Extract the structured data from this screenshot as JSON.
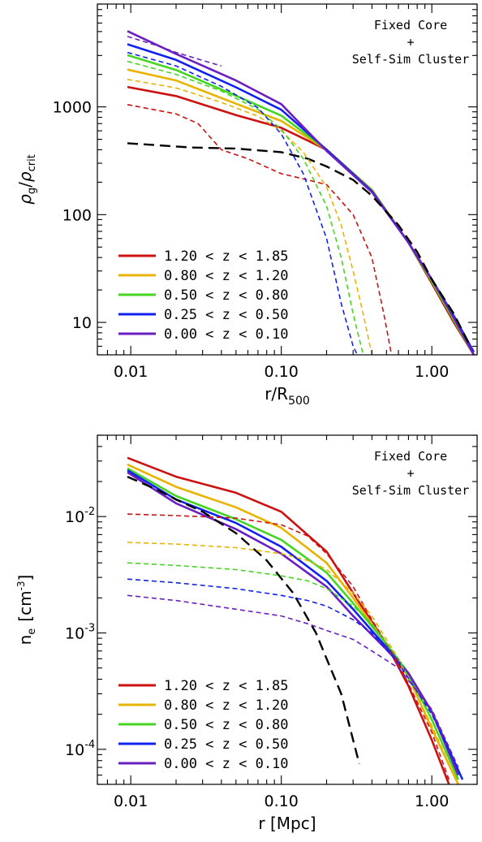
{
  "chart_data": [
    {
      "type": "line",
      "xscale": "log",
      "yscale": "log",
      "xlim": [
        0.006,
        2.0
      ],
      "ylim": [
        5,
        9000
      ],
      "xlabel_main": "r/R",
      "xlabel_sub": "500",
      "ylabel_sym1": "ρ",
      "ylabel_sub1": "g",
      "ylabel_sep": "/",
      "ylabel_sym2": "ρ",
      "ylabel_sub2": "crit",
      "x_ticks": [
        {
          "v": 0.01,
          "label": "0.01"
        },
        {
          "v": 0.1,
          "label": "0.10"
        },
        {
          "v": 1.0,
          "label": "1.00"
        }
      ],
      "y_ticks": [
        {
          "v": 10,
          "label": "10"
        },
        {
          "v": 100,
          "label": "100"
        },
        {
          "v": 1000,
          "label": "1000"
        }
      ],
      "annotation": [
        "Fixed Core",
        "+",
        "Self-Sim Cluster"
      ],
      "legend": [
        {
          "label": "1.20 < z < 1.85",
          "color": "#cc1111"
        },
        {
          "label": "0.80 < z < 1.20",
          "color": "#e8b400"
        },
        {
          "label": "0.50 < z < 0.80",
          "color": "#44d622"
        },
        {
          "label": "0.25 < z < 0.50",
          "color": "#1122ee"
        },
        {
          "label": "0.00 < z < 0.10",
          "color": "#6a1fc0"
        }
      ],
      "series": [
        {
          "color": "#cc1111",
          "style": "solid",
          "x": [
            0.0095,
            0.02,
            0.05,
            0.1,
            0.2,
            0.4,
            0.7,
            1.0,
            1.4,
            1.9
          ],
          "y": [
            1530,
            1260,
            840,
            640,
            400,
            170,
            55,
            23,
            10,
            5
          ]
        },
        {
          "color": "#e8b400",
          "style": "solid",
          "x": [
            0.0095,
            0.02,
            0.05,
            0.1,
            0.2,
            0.4,
            0.7,
            1.0,
            1.4,
            1.9
          ],
          "y": [
            2220,
            1760,
            1070,
            740,
            400,
            170,
            55,
            24,
            10.5,
            5
          ]
        },
        {
          "color": "#44d622",
          "style": "solid",
          "x": [
            0.0095,
            0.02,
            0.05,
            0.1,
            0.2,
            0.4,
            0.7,
            1.0,
            1.4,
            1.9
          ],
          "y": [
            3020,
            2200,
            1270,
            830,
            400,
            168,
            55,
            24,
            10.5,
            5
          ]
        },
        {
          "color": "#1122ee",
          "style": "solid",
          "x": [
            0.0095,
            0.02,
            0.05,
            0.1,
            0.2,
            0.4,
            0.7,
            1.0,
            1.4,
            1.9
          ],
          "y": [
            3810,
            2730,
            1520,
            940,
            400,
            165,
            55,
            25,
            11.5,
            5.3
          ]
        },
        {
          "color": "#6a1fc0",
          "style": "solid",
          "x": [
            0.0095,
            0.02,
            0.05,
            0.1,
            0.2,
            0.4,
            0.7,
            1.0,
            1.4,
            1.9
          ],
          "y": [
            5050,
            3100,
            1760,
            1060,
            390,
            162,
            55,
            25,
            11,
            5
          ]
        },
        {
          "color": "#000000",
          "style": "longdash",
          "x": [
            0.0095,
            0.025,
            0.05,
            0.1,
            0.15,
            0.2,
            0.3,
            0.4,
            0.6,
            0.8,
            1.0,
            1.4,
            1.8
          ],
          "y": [
            460,
            420,
            410,
            380,
            330,
            280,
            210,
            150,
            80,
            45,
            25,
            12,
            6
          ]
        },
        {
          "color": "#cc1111",
          "style": "dash",
          "x": [
            0.0095,
            0.02,
            0.028,
            0.04,
            0.06,
            0.1,
            0.15,
            0.2,
            0.3,
            0.4,
            0.48,
            0.54
          ],
          "y": [
            1050,
            860,
            700,
            400,
            330,
            240,
            210,
            190,
            100,
            40,
            12,
            5
          ]
        },
        {
          "color": "#e8b400",
          "style": "dash",
          "x": [
            0.0095,
            0.02,
            0.04,
            0.07,
            0.1,
            0.14,
            0.2,
            0.25,
            0.3,
            0.35,
            0.4
          ],
          "y": [
            1800,
            1500,
            1100,
            820,
            600,
            380,
            180,
            80,
            30,
            12,
            5
          ]
        },
        {
          "color": "#44d622",
          "style": "dash",
          "x": [
            0.0095,
            0.02,
            0.04,
            0.07,
            0.1,
            0.14,
            0.2,
            0.25,
            0.3,
            0.35
          ],
          "y": [
            2650,
            2000,
            1400,
            950,
            620,
            330,
            120,
            40,
            12,
            5
          ]
        },
        {
          "color": "#1122ee",
          "style": "dash",
          "x": [
            0.0095,
            0.02,
            0.04,
            0.07,
            0.1,
            0.14,
            0.2,
            0.25,
            0.3,
            0.32
          ],
          "y": [
            3200,
            2400,
            1550,
            980,
            560,
            240,
            60,
            15,
            6,
            5
          ]
        },
        {
          "color": "#6a1fc0",
          "style": "dash",
          "x": [
            0.0095,
            0.015,
            0.02,
            0.03,
            0.04
          ],
          "y": [
            4500,
            3700,
            3200,
            2700,
            2400
          ]
        }
      ]
    },
    {
      "type": "line",
      "xscale": "log",
      "yscale": "log",
      "xlim": [
        0.006,
        2.0
      ],
      "ylim": [
        5e-05,
        0.05
      ],
      "xlabel_main": "r [Mpc]",
      "ylabel_sym1": "n",
      "ylabel_sub1": "e",
      "ylabel_unit_pre": "[cm",
      "ylabel_unit_exp": "-3",
      "ylabel_unit_post": "]",
      "x_ticks": [
        {
          "v": 0.01,
          "label": "0.01"
        },
        {
          "v": 0.1,
          "label": "0.10"
        },
        {
          "v": 1.0,
          "label": "1.00"
        }
      ],
      "y_ticks": [
        {
          "v": 0.0001,
          "base": "10",
          "exp": "-4"
        },
        {
          "v": 0.001,
          "base": "10",
          "exp": "-3"
        },
        {
          "v": 0.01,
          "base": "10",
          "exp": "-2"
        }
      ],
      "annotation": [
        "Fixed Core",
        "+",
        "Self-Sim Cluster"
      ],
      "legend": [
        {
          "label": "1.20 < z < 1.85",
          "color": "#cc1111"
        },
        {
          "label": "0.80 < z < 1.20",
          "color": "#e8b400"
        },
        {
          "label": "0.50 < z < 0.80",
          "color": "#44d622"
        },
        {
          "label": "0.25 < z < 0.50",
          "color": "#1122ee"
        },
        {
          "label": "0.00 < z < 0.10",
          "color": "#6a1fc0"
        }
      ],
      "series": [
        {
          "color": "#cc1111",
          "style": "solid",
          "x": [
            0.0095,
            0.02,
            0.05,
            0.1,
            0.2,
            0.3,
            0.5,
            0.7,
            1.0,
            1.3
          ],
          "y": [
            0.032,
            0.022,
            0.016,
            0.011,
            0.005,
            0.0022,
            0.0008,
            0.00035,
            0.00012,
            5e-05
          ]
        },
        {
          "color": "#e8b400",
          "style": "solid",
          "x": [
            0.0095,
            0.02,
            0.05,
            0.1,
            0.2,
            0.3,
            0.5,
            0.7,
            1.0,
            1.5
          ],
          "y": [
            0.028,
            0.018,
            0.012,
            0.008,
            0.004,
            0.002,
            0.0008,
            0.00042,
            0.00015,
            5e-05
          ]
        },
        {
          "color": "#44d622",
          "style": "solid",
          "x": [
            0.0095,
            0.02,
            0.05,
            0.1,
            0.2,
            0.3,
            0.5,
            0.7,
            1.0,
            1.5
          ],
          "y": [
            0.026,
            0.015,
            0.0095,
            0.0063,
            0.0033,
            0.0018,
            0.0008,
            0.00045,
            0.00018,
            5.5e-05
          ]
        },
        {
          "color": "#1122ee",
          "style": "solid",
          "x": [
            0.0095,
            0.02,
            0.05,
            0.1,
            0.2,
            0.3,
            0.5,
            0.7,
            1.0,
            1.6
          ],
          "y": [
            0.025,
            0.014,
            0.0088,
            0.0055,
            0.0028,
            0.0016,
            0.00075,
            0.00045,
            0.00021,
            5.5e-05
          ]
        },
        {
          "color": "#6a1fc0",
          "style": "solid",
          "x": [
            0.0095,
            0.02,
            0.05,
            0.1,
            0.2,
            0.3,
            0.5,
            0.7,
            1.0,
            1.5
          ],
          "y": [
            0.024,
            0.013,
            0.0078,
            0.0048,
            0.0025,
            0.0014,
            0.00072,
            0.00045,
            0.00021,
            6e-05
          ]
        },
        {
          "color": "#000000",
          "style": "longdash",
          "x": [
            0.0095,
            0.015,
            0.02,
            0.03,
            0.05,
            0.08,
            0.12,
            0.17,
            0.2,
            0.25,
            0.3,
            0.33
          ],
          "y": [
            0.022,
            0.017,
            0.014,
            0.011,
            0.0072,
            0.0042,
            0.0022,
            0.001,
            0.0006,
            0.0003,
            0.00012,
            7.5e-05
          ]
        },
        {
          "color": "#cc1111",
          "style": "dash",
          "x": [
            0.0095,
            0.02,
            0.05,
            0.1,
            0.15,
            0.2,
            0.3,
            0.4,
            0.6,
            1.0,
            1.3
          ],
          "y": [
            0.0105,
            0.0102,
            0.0097,
            0.0085,
            0.0068,
            0.0048,
            0.0025,
            0.0013,
            0.00055,
            0.00014,
            5.5e-05
          ]
        },
        {
          "color": "#e8b400",
          "style": "dash",
          "x": [
            0.0095,
            0.02,
            0.05,
            0.1,
            0.15,
            0.2,
            0.3,
            0.4,
            0.6,
            1.0,
            1.5
          ],
          "y": [
            0.006,
            0.0058,
            0.0054,
            0.0048,
            0.0042,
            0.0035,
            0.0022,
            0.0014,
            0.0006,
            0.00016,
            5e-05
          ]
        },
        {
          "color": "#44d622",
          "style": "dash",
          "x": [
            0.0095,
            0.02,
            0.05,
            0.1,
            0.15,
            0.2,
            0.3,
            0.4,
            0.6,
            1.0,
            1.5
          ],
          "y": [
            0.004,
            0.0038,
            0.0035,
            0.0031,
            0.0028,
            0.0024,
            0.0017,
            0.0012,
            0.0006,
            0.00018,
            5.5e-05
          ]
        },
        {
          "color": "#1122ee",
          "style": "dash",
          "x": [
            0.0095,
            0.02,
            0.05,
            0.1,
            0.15,
            0.2,
            0.3,
            0.4,
            0.6,
            1.0,
            1.6
          ],
          "y": [
            0.0029,
            0.0027,
            0.0024,
            0.0021,
            0.0019,
            0.0017,
            0.0013,
            0.001,
            0.00055,
            0.0002,
            5.5e-05
          ]
        },
        {
          "color": "#6a1fc0",
          "style": "dash",
          "x": [
            0.0095,
            0.02,
            0.05,
            0.1,
            0.15,
            0.2,
            0.3,
            0.4,
            0.6,
            1.0,
            1.5
          ],
          "y": [
            0.0021,
            0.0019,
            0.0016,
            0.0014,
            0.0012,
            0.00105,
            0.00088,
            0.0007,
            0.0005,
            0.00022,
            7e-05
          ]
        }
      ]
    }
  ]
}
